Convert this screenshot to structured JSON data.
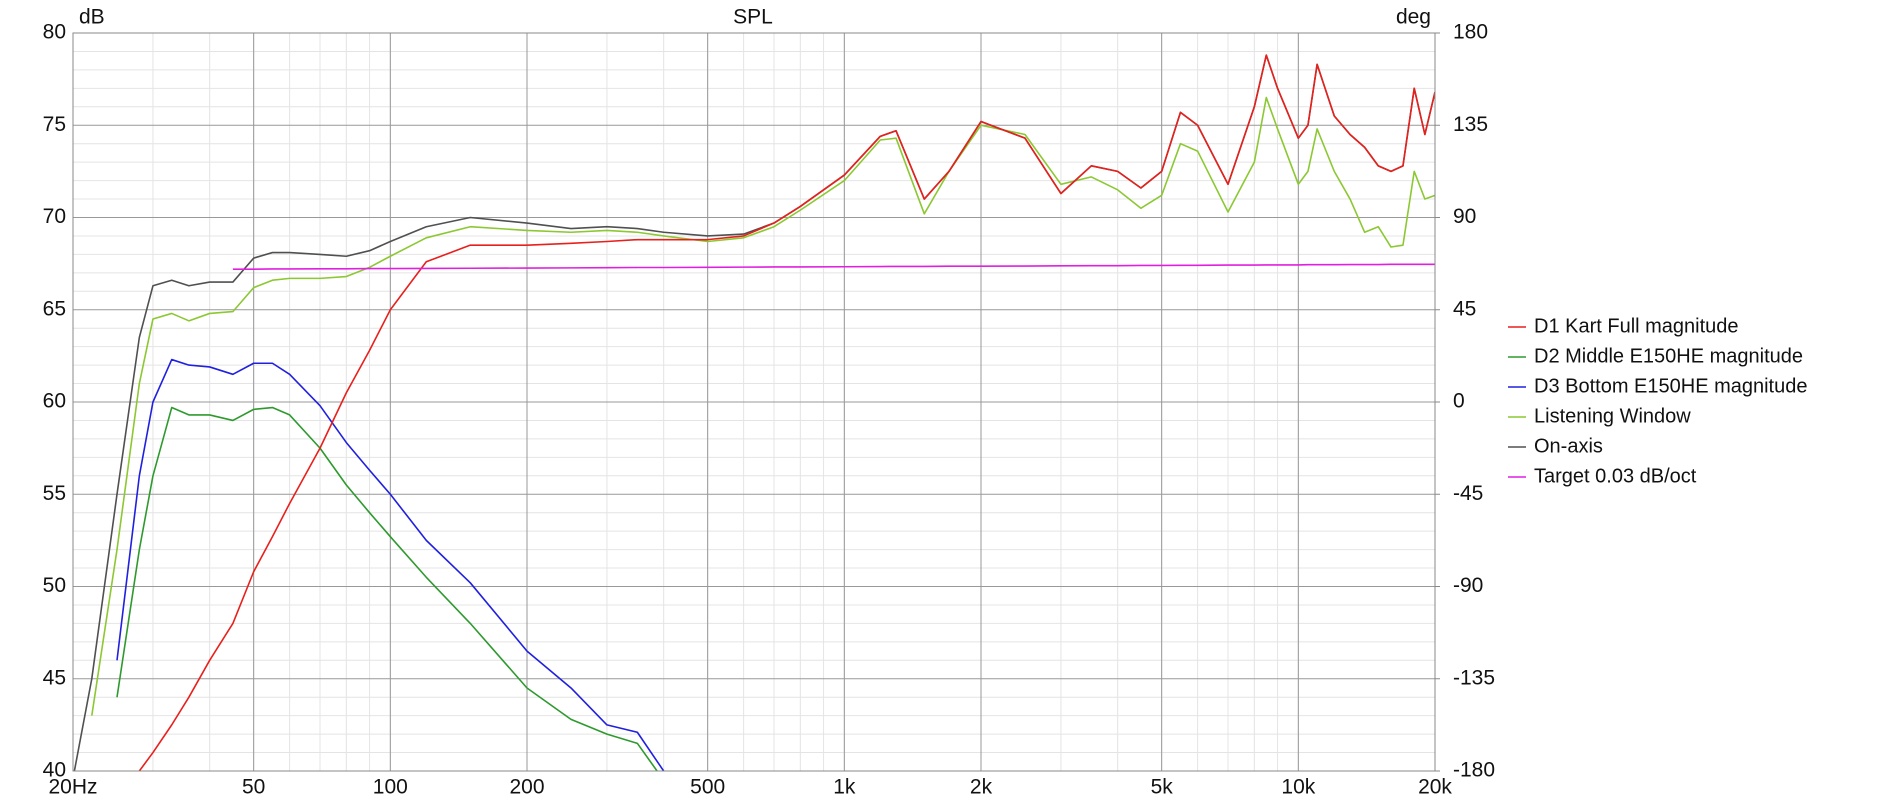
{
  "chart_data": {
    "type": "line",
    "title": "SPL",
    "y_label": "dB",
    "y2_label": "deg",
    "log_x": true,
    "grid": true,
    "legend": "right",
    "xlim": [
      20,
      20000
    ],
    "ylim": [
      40,
      80
    ],
    "y2lim": [
      -180,
      180
    ],
    "xticks": [
      {
        "value": 20,
        "label": "20Hz"
      },
      50,
      100,
      200,
      500,
      {
        "value": 1000,
        "label": "1k"
      },
      {
        "value": 2000,
        "label": "2k"
      },
      {
        "value": 5000,
        "label": "5k"
      },
      {
        "value": 10000,
        "label": "10k"
      },
      {
        "value": 20000,
        "label": "20k"
      }
    ],
    "yticks": [
      40,
      45,
      50,
      55,
      60,
      65,
      70,
      75,
      80
    ],
    "y2ticks": [
      -180,
      -135,
      -90,
      -45,
      0,
      45,
      90,
      135,
      180
    ],
    "x": [
      20,
      22,
      25,
      28,
      30,
      33,
      36,
      40,
      45,
      50,
      55,
      60,
      70,
      80,
      90,
      100,
      120,
      150,
      200,
      250,
      300,
      350,
      400,
      500,
      600,
      700,
      800,
      1000,
      1200,
      1300,
      1500,
      1700,
      2000,
      2500,
      3000,
      3500,
      4000,
      4500,
      5000,
      5500,
      6000,
      7000,
      8000,
      8500,
      9000,
      10000,
      10500,
      11000,
      12000,
      13000,
      14000,
      15000,
      16000,
      17000,
      18000,
      19000,
      20000
    ],
    "series": [
      {
        "name": "D1 Kart Full magnitude",
        "color": "#e8201c",
        "values": [
          null,
          null,
          null,
          40.0,
          41.0,
          42.5,
          44.0,
          46.0,
          48.0,
          50.8,
          52.7,
          54.5,
          57.5,
          60.5,
          62.8,
          65.0,
          67.6,
          68.5,
          68.5,
          68.6,
          68.7,
          68.8,
          68.8,
          68.8,
          69.0,
          69.7,
          70.6,
          72.3,
          74.4,
          74.7,
          71.0,
          72.5,
          75.2,
          74.3,
          71.3,
          72.8,
          72.5,
          71.6,
          72.5,
          75.7,
          75.0,
          71.8,
          76.0,
          78.8,
          77.0,
          74.3,
          75.0,
          78.3,
          75.5,
          74.5,
          73.8,
          72.8,
          72.5,
          72.8,
          77.0,
          74.5,
          76.8
        ]
      },
      {
        "name": "D2 Middle E150HE magnitude",
        "color": "#2e9a2e",
        "values": [
          null,
          null,
          44,
          52,
          56,
          59.7,
          59.3,
          59.3,
          59.0,
          59.6,
          59.7,
          59.3,
          57.5,
          55.5,
          54,
          52.7,
          50.5,
          48,
          44.5,
          42.8,
          42,
          41.5,
          39.5,
          null,
          null,
          null,
          null,
          null,
          null,
          null,
          null,
          null,
          null,
          null,
          null,
          null,
          null,
          null,
          null,
          null,
          null,
          null,
          null,
          null,
          null,
          null,
          null,
          null,
          null,
          null,
          null,
          null,
          null,
          null,
          null,
          null,
          null
        ]
      },
      {
        "name": "D3 Bottom E150HE magnitude",
        "color": "#2020e0",
        "values": [
          null,
          null,
          46,
          56,
          60,
          62.3,
          62,
          61.9,
          61.5,
          62.1,
          62.1,
          61.5,
          59.8,
          57.8,
          56.3,
          55,
          52.5,
          50.2,
          46.5,
          44.5,
          42.5,
          42.1,
          40,
          null,
          null,
          null,
          null,
          null,
          null,
          null,
          null,
          null,
          null,
          null,
          null,
          null,
          null,
          null,
          null,
          null,
          null,
          null,
          null,
          null,
          null,
          null,
          null,
          null,
          null,
          null,
          null,
          null,
          null,
          null,
          null,
          null,
          null
        ]
      },
      {
        "name": "Listening Window",
        "color": "#8cc832",
        "values": [
          null,
          43,
          52,
          61,
          64.5,
          64.8,
          64.4,
          64.8,
          64.9,
          66.2,
          66.6,
          66.7,
          66.7,
          66.8,
          67.3,
          67.9,
          68.9,
          69.5,
          69.3,
          69.2,
          69.3,
          69.2,
          69.0,
          68.7,
          68.9,
          69.5,
          70.4,
          72.0,
          74.2,
          74.3,
          70.2,
          72.5,
          75.0,
          74.5,
          71.8,
          72.2,
          71.5,
          70.5,
          71.2,
          74.0,
          73.6,
          70.3,
          73.0,
          76.5,
          74.8,
          71.8,
          72.5,
          74.8,
          72.5,
          71.0,
          69.2,
          69.5,
          68.4,
          68.5,
          72.5,
          71.0,
          71.2
        ]
      },
      {
        "name": "On-axis",
        "color": "#505050",
        "values": [
          39.6,
          45,
          55,
          63.5,
          66.3,
          66.6,
          66.3,
          66.5,
          66.5,
          67.8,
          68.1,
          68.1,
          68.0,
          67.9,
          68.2,
          68.7,
          69.5,
          70.0,
          69.7,
          69.4,
          69.5,
          69.4,
          69.2,
          69.0,
          69.1,
          69.7,
          70.6,
          72.3,
          74.4,
          74.7,
          71.0,
          72.5,
          75.2,
          74.3,
          71.3,
          72.8,
          72.5,
          71.6,
          72.5,
          75.7,
          75.0,
          71.8,
          76.0,
          78.8,
          77.0,
          74.3,
          75.0,
          78.3,
          75.5,
          74.5,
          73.8,
          72.8,
          72.5,
          72.8,
          77.0,
          74.5,
          76.8
        ]
      },
      {
        "name": "Target 0.03 dB/oct",
        "color": "#e020e0",
        "values": [
          null,
          null,
          null,
          null,
          null,
          null,
          null,
          null,
          67.2,
          67.2,
          67.21,
          67.21,
          67.22,
          67.22,
          67.23,
          67.23,
          67.24,
          67.25,
          67.26,
          67.27,
          67.28,
          67.29,
          67.29,
          67.3,
          67.31,
          67.32,
          67.32,
          67.33,
          67.34,
          67.35,
          67.35,
          67.36,
          67.36,
          67.37,
          67.38,
          67.39,
          67.39,
          67.4,
          67.4,
          67.41,
          67.41,
          67.42,
          67.42,
          67.43,
          67.43,
          67.43,
          67.44,
          67.44,
          67.44,
          67.45,
          67.45,
          67.45,
          67.46,
          67.46,
          67.46,
          67.46,
          67.46
        ]
      }
    ]
  }
}
